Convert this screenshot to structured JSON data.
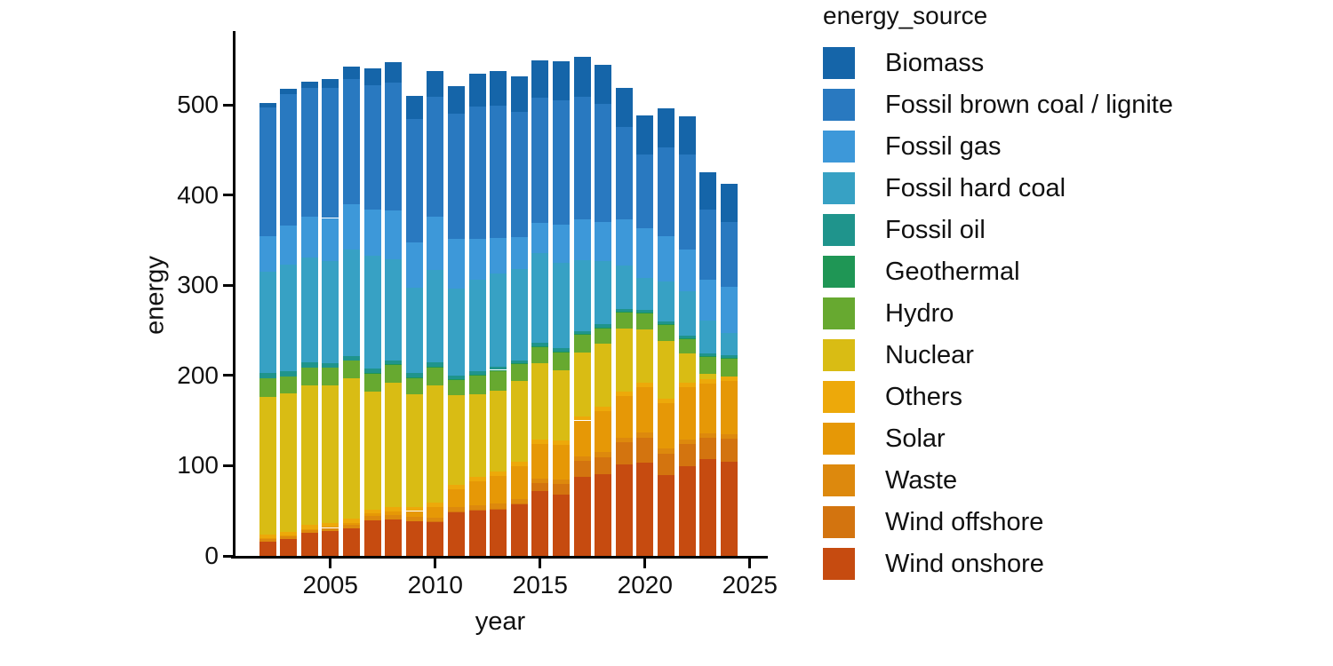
{
  "chart_data": {
    "type": "bar",
    "stacked": true,
    "title": "",
    "xlabel": "year",
    "ylabel": "energy",
    "legend_title": "energy_source",
    "legend_position": "right",
    "grid": false,
    "ylim": [
      0,
      582
    ],
    "y_ticks": [
      0,
      100,
      200,
      300,
      400,
      500
    ],
    "x_ticks": [
      2005,
      2010,
      2015,
      2020,
      2025
    ],
    "years": [
      2002,
      2003,
      2004,
      2005,
      2006,
      2007,
      2008,
      2009,
      2010,
      2011,
      2012,
      2013,
      2014,
      2015,
      2016,
      2017,
      2018,
      2019,
      2020,
      2021,
      2022,
      2023,
      2024
    ],
    "stacking_note": "series listed in legend order; bars stack with first series on top",
    "series": [
      {
        "name": "Biomass",
        "color": "#1565A9",
        "values": [
          5,
          6.5,
          7.5,
          10.5,
          14,
          19,
          22.5,
          25,
          28,
          31,
          37,
          38.5,
          40,
          41.5,
          43.5,
          44,
          43.5,
          43.5,
          43.5,
          43,
          42.5,
          41,
          42
        ]
      },
      {
        "name": "Fossil brown coal / lignite",
        "color": "#2979C0",
        "values": [
          142,
          145,
          143,
          144,
          139,
          138,
          142,
          137,
          133,
          138,
          146,
          146,
          139,
          139,
          138,
          136,
          131,
          102,
          82,
          99,
          106,
          78,
          72
        ]
      },
      {
        "name": "Fossil gas",
        "color": "#3D98D9",
        "values": [
          40,
          44,
          45,
          48,
          50,
          51,
          54,
          50,
          59,
          56,
          46,
          40,
          35,
          33,
          42,
          45,
          43,
          51,
          55,
          50,
          46,
          45.5,
          51
        ]
      },
      {
        "name": "Fossil hard coal",
        "color": "#37A1C4",
        "values": [
          112,
          118,
          116,
          113,
          118,
          125,
          112,
          95,
          103,
          96,
          101,
          103,
          101,
          100,
          95,
          79,
          70,
          48,
          35,
          44,
          49,
          36,
          25
        ]
      },
      {
        "name": "Fossil oil",
        "color": "#1F948C",
        "values": [
          5.5,
          5.8,
          5.5,
          5.3,
          5,
          4.8,
          4.5,
          4.2,
          4.2,
          4,
          3.8,
          3.6,
          3.5,
          3.4,
          3.4,
          3.3,
          3.2,
          3,
          3,
          3,
          3.1,
          2.9,
          2.8
        ]
      },
      {
        "name": "Geothermal",
        "color": "#1F9655",
        "values": [
          0,
          0,
          0,
          0,
          0,
          0.1,
          0.1,
          0.1,
          0.1,
          0.1,
          0.1,
          0.1,
          0.1,
          0.1,
          0.2,
          0.2,
          0.2,
          0.2,
          0.2,
          0.2,
          0.2,
          0.2,
          0.2
        ]
      },
      {
        "name": "Hydro",
        "color": "#67A930",
        "values": [
          21.5,
          19,
          20,
          19.5,
          19.8,
          20.7,
          20,
          18.9,
          20.6,
          17.3,
          21.4,
          22.7,
          19.5,
          18.7,
          20.5,
          19.9,
          17.6,
          19.2,
          18.5,
          19.1,
          16.4,
          19.5,
          20.5
        ]
      },
      {
        "name": "Nuclear",
        "color": "#D9BC14",
        "values": [
          152.5,
          153,
          155,
          152,
          155.5,
          130.5,
          138,
          125,
          130,
          100,
          92,
          90,
          89.5,
          84.5,
          78,
          70.5,
          70,
          69.5,
          59.5,
          64,
          32.5,
          6.7,
          0
        ]
      },
      {
        "name": "Others",
        "color": "#EDA90A",
        "values": [
          4,
          4.2,
          4.3,
          4.4,
          4.5,
          4.6,
          4.7,
          4.6,
          4.8,
          4.8,
          4.8,
          4.8,
          4.8,
          4.8,
          4.9,
          4.9,
          4.9,
          4.9,
          4.9,
          4.9,
          4.9,
          4.8,
          4.8
        ]
      },
      {
        "name": "Solar",
        "color": "#E69806",
        "values": [
          0.2,
          0.3,
          0.6,
          1.3,
          2.2,
          3.1,
          4.4,
          6.6,
          11.7,
          19.3,
          26.4,
          31,
          36.1,
          38.7,
          38.1,
          39.4,
          45.8,
          46.4,
          50.6,
          50,
          58,
          55,
          59
        ]
      },
      {
        "name": "Waste",
        "color": "#DD890D",
        "values": [
          3.2,
          3.4,
          3.6,
          3.8,
          4,
          4.2,
          4.4,
          4.5,
          4.7,
          4.8,
          4.9,
          5,
          5,
          5.1,
          5.2,
          5.3,
          5.3,
          5.4,
          5.4,
          5.4,
          5.3,
          5.2,
          5.1
        ]
      },
      {
        "name": "Wind offshore",
        "color": "#D3740F",
        "values": [
          0,
          0,
          0,
          0,
          0,
          0,
          0,
          0,
          0.2,
          0.6,
          0.7,
          0.9,
          1.4,
          8.2,
          12.1,
          17.4,
          19.1,
          24.4,
          27.3,
          24,
          24.8,
          23.5,
          25.7
        ]
      },
      {
        "name": "Wind onshore",
        "color": "#C64B10",
        "values": [
          15.9,
          18.9,
          25.5,
          27.2,
          30.7,
          39.7,
          40.6,
          38.6,
          37.8,
          48.9,
          50.7,
          51.7,
          57,
          72.3,
          67.8,
          88,
          90.5,
          101.1,
          103.7,
          89.5,
          99,
          107,
          104
        ]
      }
    ]
  }
}
